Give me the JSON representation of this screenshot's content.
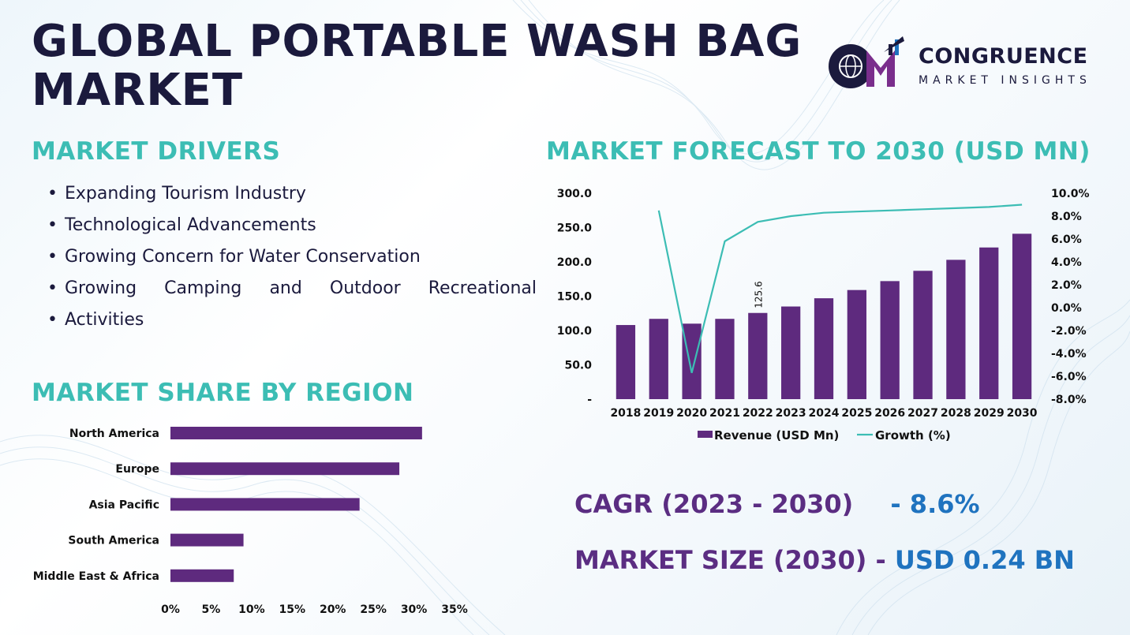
{
  "header": {
    "title_line1": "GLOBAL PORTABLE WASH BAG",
    "title_line2": "MARKET"
  },
  "logo": {
    "mark": "CM",
    "name": "CONGRUENCE",
    "tagline": "MARKET INSIGHTS",
    "icon": "globe-bar-chart-logo-icon"
  },
  "drivers": {
    "heading": "MARKET DRIVERS",
    "items": [
      "Expanding Tourism Industry",
      "Technological Advancements",
      "Growing Concern for Water Conservation",
      "Growing Camping and Outdoor Recreational",
      "Activities"
    ]
  },
  "forecast": {
    "heading": "MARKET FORECAST TO 2030 (USD MN)"
  },
  "region": {
    "heading": "MARKET SHARE BY REGION"
  },
  "stats": {
    "cagr_label": "CAGR (2023 - 2030)",
    "cagr_value": "- 8.6%",
    "size_label": "MARKET SIZE (2030) -",
    "size_value": "USD 0.24 BN"
  },
  "colors": {
    "bar": "#5e2a7e",
    "line": "#3cbdb4",
    "heading": "#3cbdb4",
    "navy": "#1b1a3d",
    "blue": "#1f73bf"
  },
  "chart_data": [
    {
      "type": "bar",
      "combo": "bar+line",
      "categories": [
        "2018",
        "2019",
        "2020",
        "2021",
        "2022",
        "2023",
        "2024",
        "2025",
        "2026",
        "2027",
        "2028",
        "2029",
        "2030"
      ],
      "series": [
        {
          "name": "Revenue (USD Mn)",
          "type": "bar",
          "axis": "left",
          "values": [
            108,
            117,
            110,
            117,
            125.6,
            135,
            147,
            159,
            172,
            187,
            203,
            221,
            241
          ]
        },
        {
          "name": "Growth (%)",
          "type": "line",
          "axis": "right",
          "values": [
            null,
            8.5,
            -5.7,
            5.8,
            7.5,
            8.0,
            8.3,
            8.4,
            8.5,
            8.6,
            8.7,
            8.8,
            9.0
          ]
        }
      ],
      "data_labels": [
        {
          "category": "2022",
          "text": "125.6"
        }
      ],
      "y_left": {
        "ticks": [
          "-",
          "50.0",
          "100.0",
          "150.0",
          "200.0",
          "250.0",
          "300.0"
        ],
        "ylim": [
          0,
          300
        ]
      },
      "y_right": {
        "ticks": [
          "-8.0%",
          "-6.0%",
          "-4.0%",
          "-2.0%",
          "0.0%",
          "2.0%",
          "4.0%",
          "6.0%",
          "8.0%",
          "10.0%"
        ],
        "ylim": [
          -8,
          10
        ]
      },
      "legend_position": "bottom",
      "grid": false
    },
    {
      "type": "bar",
      "orientation": "horizontal",
      "categories": [
        "North America",
        "Europe",
        "Asia Pacific",
        "South America",
        "Middle East & Africa"
      ],
      "values": [
        31,
        28.2,
        23.3,
        9,
        7.8
      ],
      "x_ticks": [
        "0%",
        "5%",
        "10%",
        "15%",
        "20%",
        "25%",
        "30%",
        "35%"
      ],
      "xlim": [
        0,
        35
      ],
      "grid": false
    }
  ]
}
